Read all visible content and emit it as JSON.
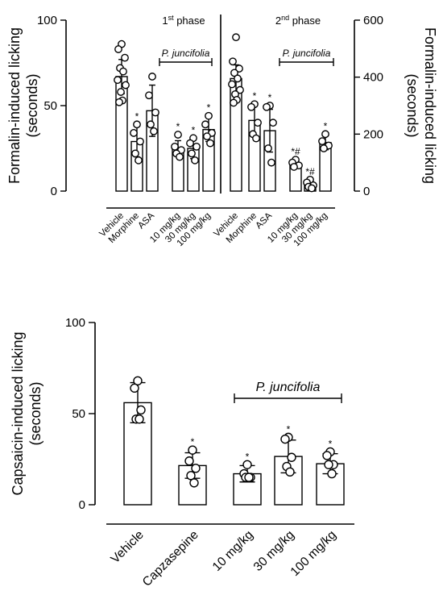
{
  "chart_data": [
    {
      "type": "bar",
      "panel": "formalin",
      "ylabel_left": [
        "Formalin-induced licking",
        "(seconds)"
      ],
      "ylabel_right": [
        "Formalin-induced licking",
        "(seconds)"
      ],
      "left_axis": {
        "ylim": [
          0,
          100
        ],
        "ticks": [
          "0",
          "50",
          "100"
        ]
      },
      "right_axis": {
        "ylim": [
          0,
          600
        ],
        "ticks": [
          "0",
          "200",
          "400",
          "600"
        ]
      },
      "phases": [
        {
          "label_main": "1",
          "label_sup": "st",
          "label_rest": " phase",
          "axis": "left",
          "bracket_label": "P. juncifolia",
          "categories": [
            "Vehicle",
            "Morphine",
            "ASA",
            "10 mg/kg",
            "30 mg/kg",
            "100 mg/kg"
          ],
          "values": [
            67,
            29,
            47,
            25,
            25,
            36
          ],
          "sd": [
            10,
            9,
            15,
            4.5,
            6,
            7
          ],
          "significance": [
            "",
            "*",
            "",
            "*",
            "*",
            "*"
          ],
          "points": [
            [
              86,
              83,
              78,
              72,
              70,
              65,
              62,
              58,
              53,
              52
            ],
            [
              39,
              34,
              29,
              22,
              18
            ],
            [
              67,
              56,
              46,
              39,
              35
            ],
            [
              33,
              26,
              24,
              22,
              20
            ],
            [
              31,
              28,
              26,
              22,
              18
            ],
            [
              44,
              39,
              34,
              32,
              28
            ]
          ]
        },
        {
          "label_main": "2",
          "label_sup": "nd",
          "label_rest": " phase",
          "axis": "right",
          "bracket_label": "P. juncifolia",
          "categories": [
            "Vehicle",
            "Morphine",
            "ASA",
            "10 mg/kg",
            "30 mg/kg",
            "100 mg/kg"
          ],
          "values": [
            395,
            248,
            212,
            95,
            22,
            170
          ],
          "sd": [
            48,
            58,
            75,
            12,
            12,
            25
          ],
          "significance": [
            "",
            "*",
            "*",
            "*#",
            "*#",
            "*"
          ],
          "points": [
            [
              540,
              455,
              430,
              415,
              395,
              375,
              355,
              340,
              320,
              310
            ],
            [
              305,
              295,
              240,
              200,
              185
            ],
            [
              300,
              295,
              240,
              150,
              100
            ],
            [
              110,
              100,
              90,
              85
            ],
            [
              40,
              30,
              20,
              15,
              10
            ],
            [
              200,
              175,
              160,
              150
            ]
          ]
        }
      ]
    },
    {
      "type": "bar",
      "panel": "capsaicin",
      "ylabel": [
        "Capsaicin-induced licking",
        "(seconds)"
      ],
      "ylim": [
        0,
        100
      ],
      "yticks": [
        "0",
        "50",
        "100"
      ],
      "bracket_label": "P. juncifolia",
      "categories": [
        "Vehicle",
        "Capzasepine",
        "10 mg/kg",
        "30 mg/kg",
        "100 mg/kg"
      ],
      "values": [
        56,
        21.5,
        17,
        26.5,
        22.5
      ],
      "sd": [
        11,
        7,
        4.5,
        9,
        5.5
      ],
      "significance": [
        "",
        "*",
        "*",
        "*",
        "*"
      ],
      "points": [
        [
          68,
          64,
          52,
          47,
          47
        ],
        [
          30,
          24,
          20,
          16,
          12
        ],
        [
          22,
          17,
          15,
          15,
          15
        ],
        [
          37,
          36,
          26,
          21,
          18
        ],
        [
          29,
          27,
          22,
          22,
          17
        ]
      ]
    }
  ]
}
